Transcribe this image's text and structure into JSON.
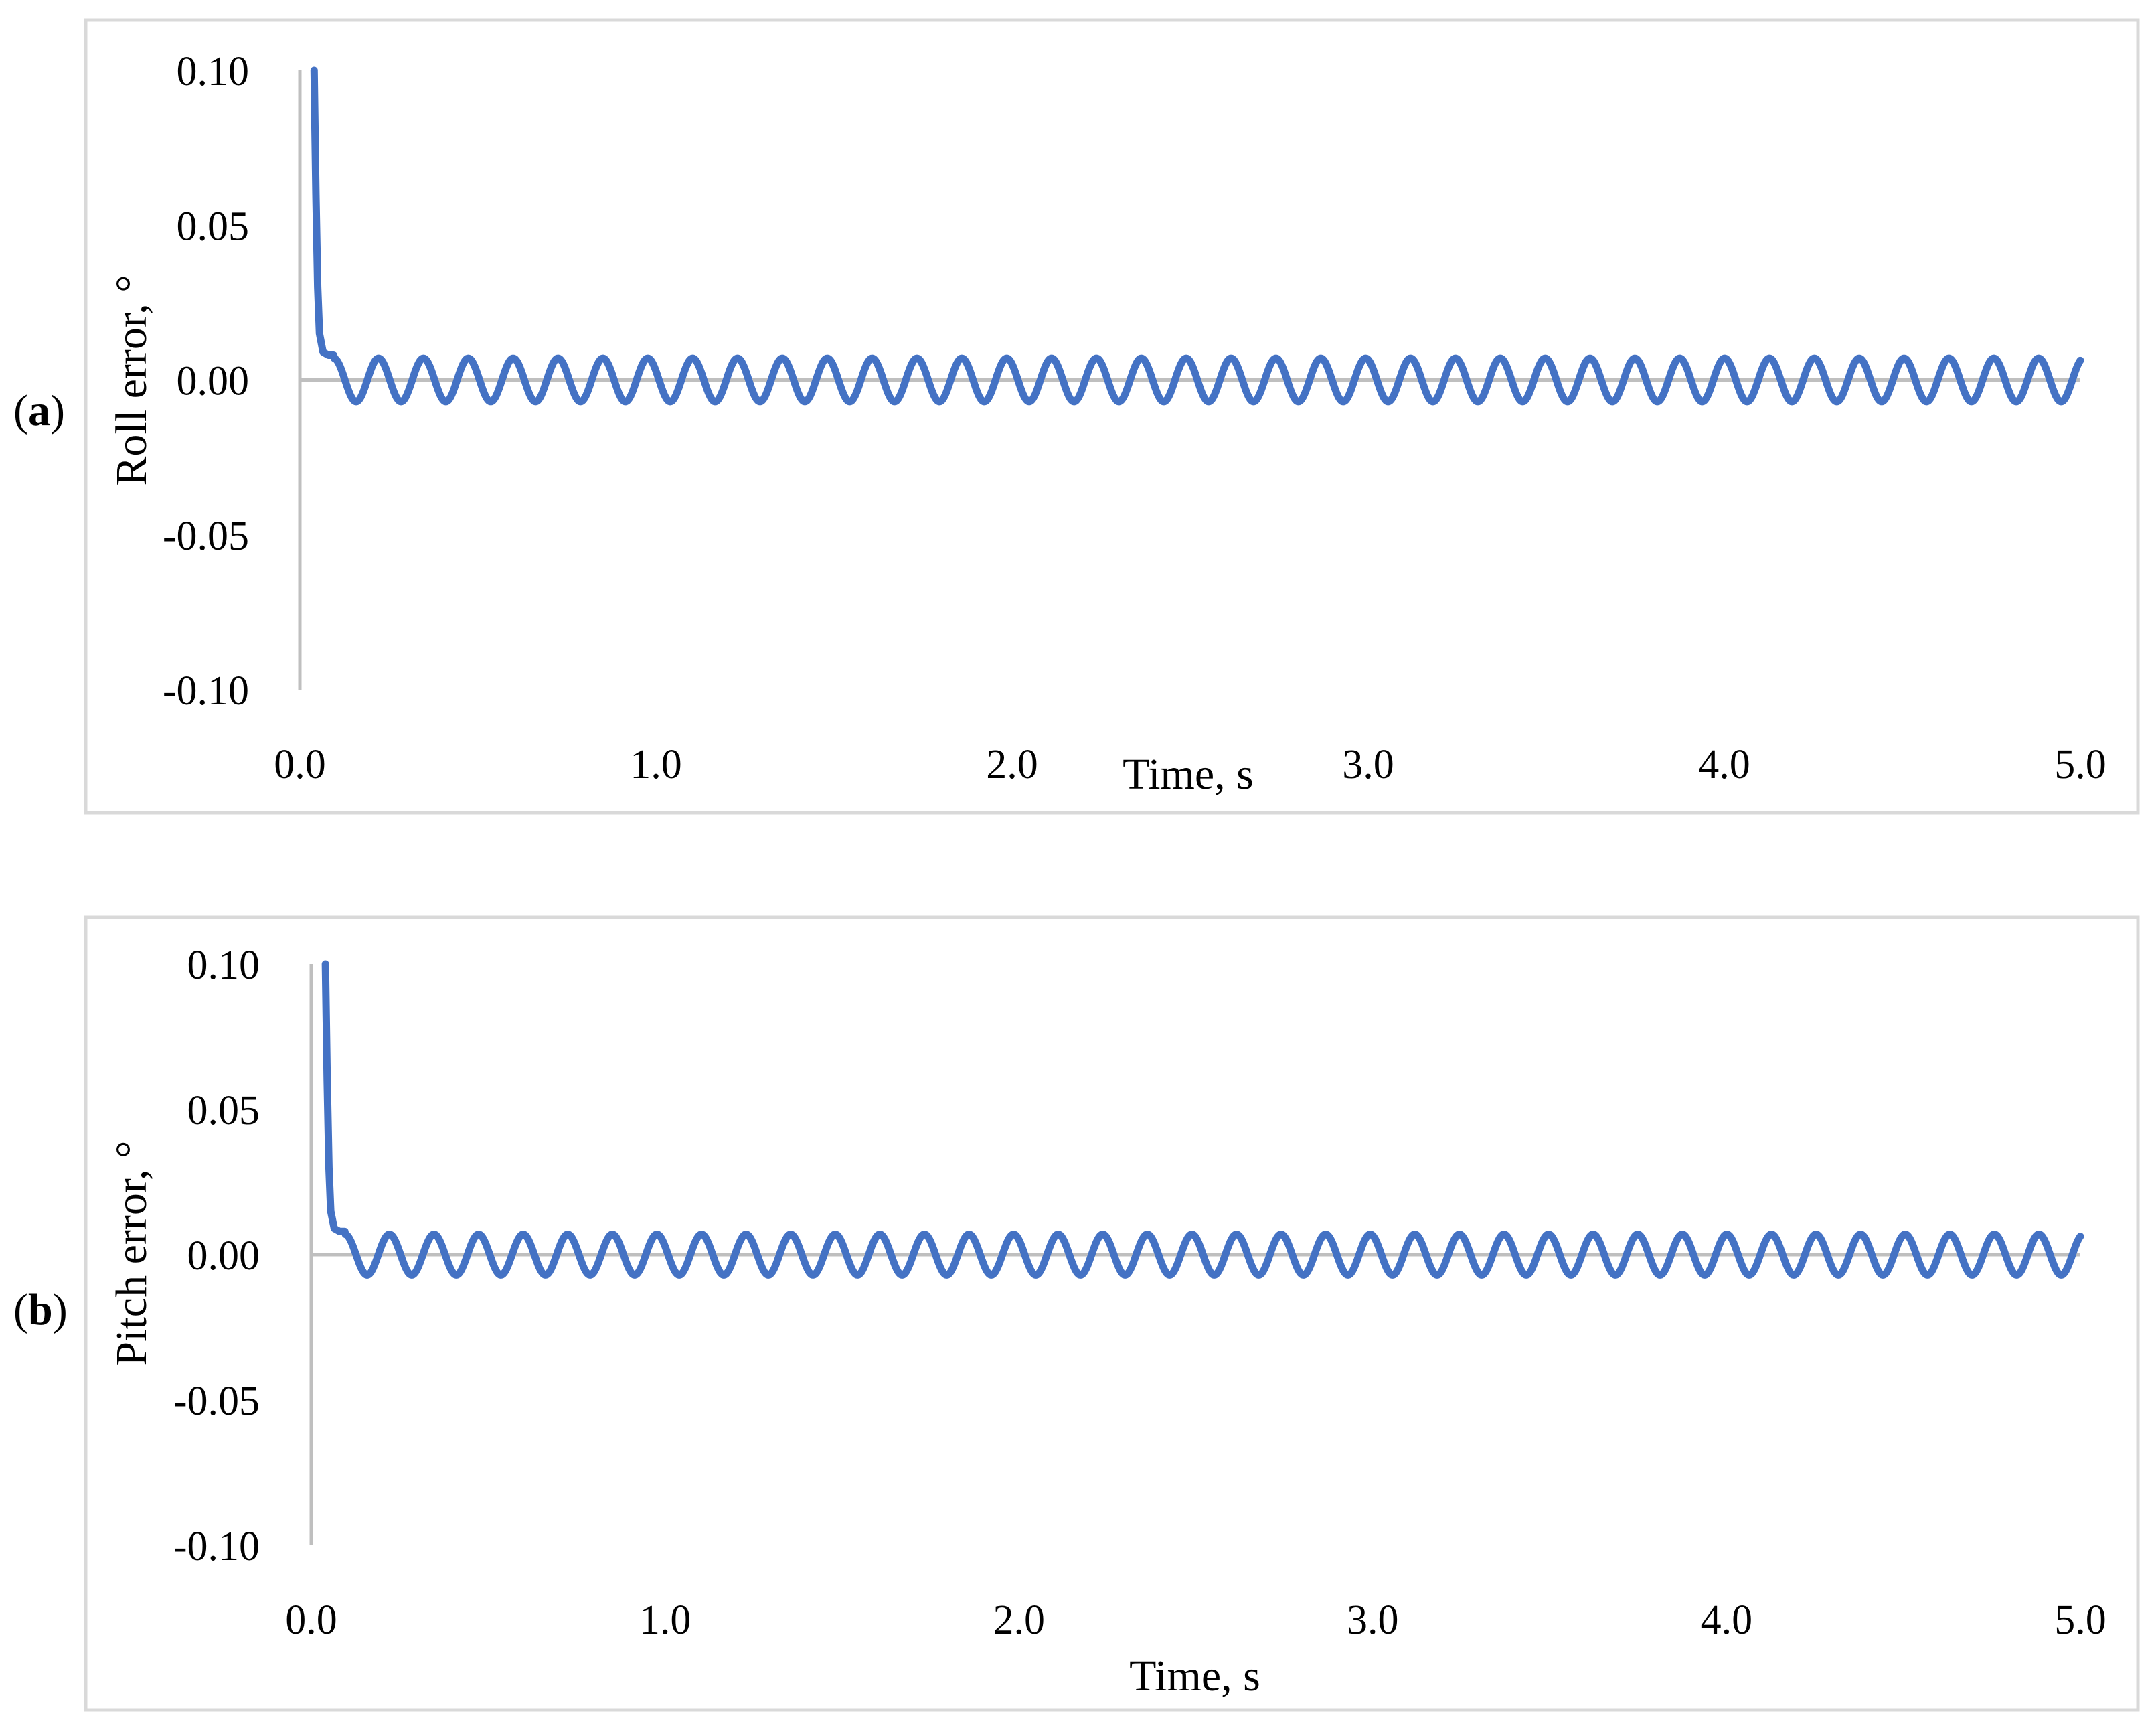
{
  "chart_data": [
    {
      "type": "line",
      "panel_label": "(a)",
      "panel_letter": "a",
      "xlabel": "Time, s",
      "ylabel": "Roll error, °",
      "xlim": [
        0.0,
        5.0
      ],
      "ylim": [
        -0.1,
        0.1
      ],
      "x_ticks": [
        "0.0",
        "1.0",
        "2.0",
        "3.0",
        "4.0",
        "5.0"
      ],
      "y_ticks": [
        "0.10",
        "0.05",
        "0.00",
        "-0.05",
        "-0.10"
      ],
      "grid": false,
      "series_color": "#4472C4",
      "series": [
        {
          "points": [
            [
              0.04,
              0.1
            ],
            [
              0.045,
              0.06
            ],
            [
              0.05,
              0.03
            ],
            [
              0.055,
              0.015
            ],
            [
              0.065,
              0.009
            ],
            [
              0.08,
              0.008
            ],
            [
              0.095,
              0.008
            ]
          ],
          "oscillation": {
            "start": 0.095,
            "end": 5.0,
            "amplitude": 0.007,
            "period": 0.126,
            "center": 0.0
          }
        }
      ]
    },
    {
      "type": "line",
      "panel_label": "(b)",
      "panel_letter": "b",
      "xlabel": "Time, s",
      "ylabel": "Pitch error, °",
      "xlim": [
        0.0,
        5.0
      ],
      "ylim": [
        -0.1,
        0.1
      ],
      "x_ticks": [
        "0.0",
        "1.0",
        "2.0",
        "3.0",
        "4.0",
        "5.0"
      ],
      "y_ticks": [
        "0.10",
        "0.05",
        "0.00",
        "-0.05",
        "-0.10"
      ],
      "grid": false,
      "series_color": "#4472C4",
      "series": [
        {
          "points": [
            [
              0.04,
              0.1
            ],
            [
              0.045,
              0.06
            ],
            [
              0.05,
              0.03
            ],
            [
              0.055,
              0.015
            ],
            [
              0.065,
              0.009
            ],
            [
              0.08,
              0.008
            ],
            [
              0.095,
              0.008
            ]
          ],
          "oscillation": {
            "start": 0.095,
            "end": 5.0,
            "amplitude": 0.007,
            "period": 0.126,
            "center": 0.0
          }
        }
      ]
    }
  ]
}
